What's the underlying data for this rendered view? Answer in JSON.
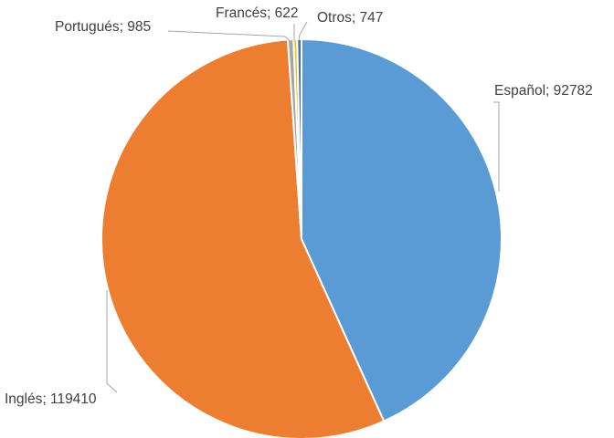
{
  "chart_data": {
    "type": "pie",
    "title": "",
    "start_angle_deg": 0,
    "direction": "clockwise",
    "legend": "none",
    "slices": [
      {
        "key": "espanol",
        "label": "Español",
        "value": 92782,
        "color": "#5b9bd5",
        "display": "Español; 92782"
      },
      {
        "key": "ingles",
        "label": "Inglés",
        "value": 119410,
        "color": "#ed7d31",
        "display": "Inglés; 119410"
      },
      {
        "key": "portugues",
        "label": "Portugués",
        "value": 985,
        "color": "#a5a5a5",
        "display": "Portugués; 985"
      },
      {
        "key": "frances",
        "label": "Francés",
        "value": 622,
        "color": "#ffc000",
        "display": "Francés; 622"
      },
      {
        "key": "otros",
        "label": "Otros",
        "value": 747,
        "color": "#4472c4",
        "display": "Otros; 747"
      }
    ]
  }
}
